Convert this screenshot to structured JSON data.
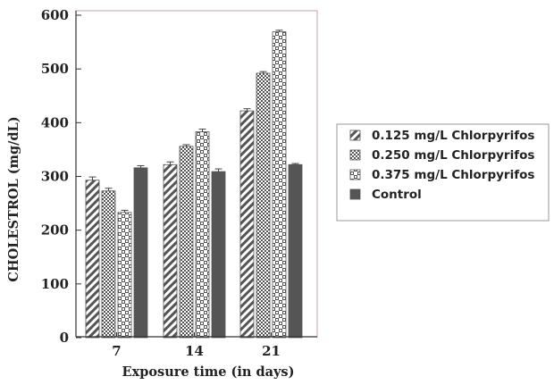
{
  "chart_data": {
    "type": "bar",
    "categories": [
      "7",
      "14",
      "21"
    ],
    "series": [
      {
        "name": "0.125 mg/L Chlorpyrifos",
        "values": [
          293,
          322,
          422
        ],
        "errors": [
          6,
          5,
          4
        ],
        "pattern": "diagonal"
      },
      {
        "name": "0.250 mg/L Chlorpyrifos",
        "values": [
          273,
          356,
          492
        ],
        "errors": [
          5,
          3,
          3
        ],
        "pattern": "dense-check"
      },
      {
        "name": "0.375 mg/L Chlorpyrifos",
        "values": [
          233,
          383,
          569
        ],
        "errors": [
          4,
          5,
          3
        ],
        "pattern": "checker"
      },
      {
        "name": "Control",
        "values": [
          316,
          309,
          322
        ],
        "errors": [
          4,
          5,
          2
        ],
        "pattern": "solid"
      }
    ],
    "xlabel": "Exposure time (in days)",
    "ylabel": "CHOLESTROL (mg/dL)",
    "ylim": [
      0,
      600
    ],
    "yticks": [
      0,
      100,
      200,
      300,
      400,
      500,
      600
    ],
    "legend_position": "right",
    "grid": false,
    "colors": {
      "bar_dark": "#555555",
      "bar_light": "#ffffff",
      "axis": "#333333",
      "frame": "#c9a0a4"
    }
  }
}
